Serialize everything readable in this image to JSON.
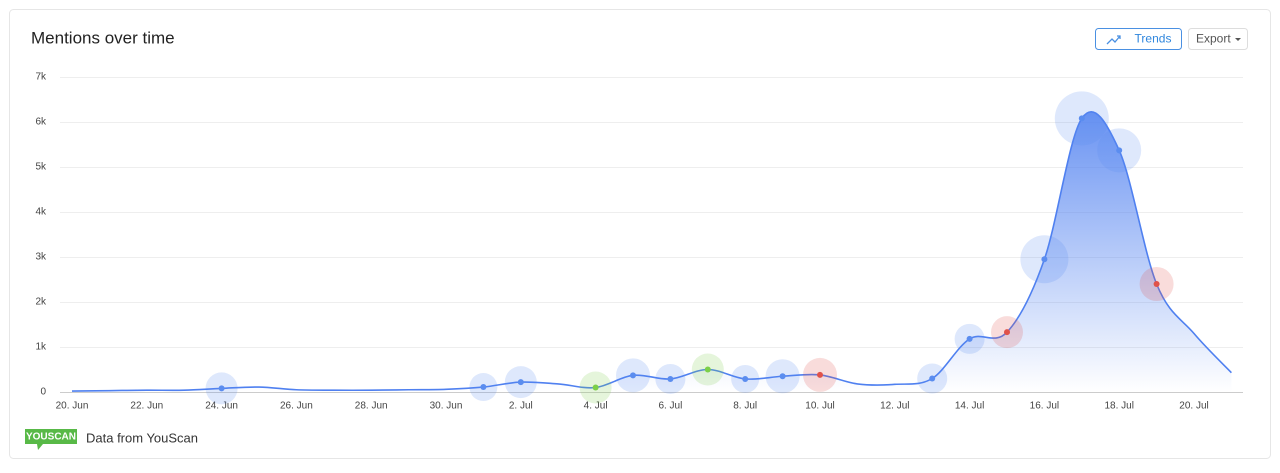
{
  "header": {
    "title": "Mentions over time",
    "trends_button": "Trends",
    "export_button": "Export"
  },
  "chart_data": {
    "type": "line",
    "categories": [
      "20. Jun",
      null,
      "22. Jun",
      null,
      "24. Jun",
      null,
      "26. Jun",
      null,
      "28. Jun",
      null,
      "30. Jun",
      null,
      "2. Jul",
      null,
      "4. Jul",
      null,
      "6. Jul",
      null,
      "8. Jul",
      null,
      "10. Jul",
      null,
      "12. Jul",
      null,
      "14. Jul",
      null,
      "16. Jul",
      null,
      "18. Jul",
      null,
      "20. Jul",
      null
    ],
    "values": [
      20,
      30,
      40,
      40,
      80,
      110,
      50,
      40,
      40,
      50,
      60,
      110,
      220,
      180,
      100,
      370,
      290,
      500,
      290,
      350,
      380,
      180,
      170,
      300,
      1180,
      1330,
      2950,
      6080,
      5370,
      2400,
      1300,
      430
    ],
    "marker_sizes": [
      null,
      null,
      null,
      null,
      16,
      null,
      null,
      null,
      null,
      null,
      null,
      14,
      16,
      null,
      16,
      17,
      15,
      16,
      14,
      17,
      17,
      null,
      null,
      15,
      15,
      16,
      24,
      27,
      22,
      17,
      null,
      null
    ],
    "marker_colors": [
      null,
      null,
      null,
      null,
      "#5b8def",
      null,
      null,
      null,
      null,
      null,
      null,
      "#5b8def",
      "#5b8def",
      null,
      "#7ccf4a",
      "#5b8def",
      "#5b8def",
      "#7ccf4a",
      "#5b8def",
      "#5b8def",
      "#e0524a",
      null,
      null,
      "#5b8def",
      "#5b8def",
      "#e0524a",
      "#5b8def",
      "#5b8def",
      "#5b8def",
      "#e0524a",
      null,
      null
    ],
    "color": "#4f80f0",
    "ylim": [
      0,
      7000
    ],
    "yticks": [
      0,
      {
        "value": 1000,
        "label": "1k"
      },
      {
        "value": 2000,
        "label": "2k"
      },
      {
        "value": 3000,
        "label": "3k"
      },
      {
        "value": 4000,
        "label": "4k"
      },
      {
        "value": 5000,
        "label": "5k"
      },
      {
        "value": 6000,
        "label": "6k"
      },
      {
        "value": 7000,
        "label": "7k"
      }
    ],
    "grid": true
  },
  "footer": {
    "logo": "YOUSCAN",
    "source": "Data from YouScan"
  }
}
